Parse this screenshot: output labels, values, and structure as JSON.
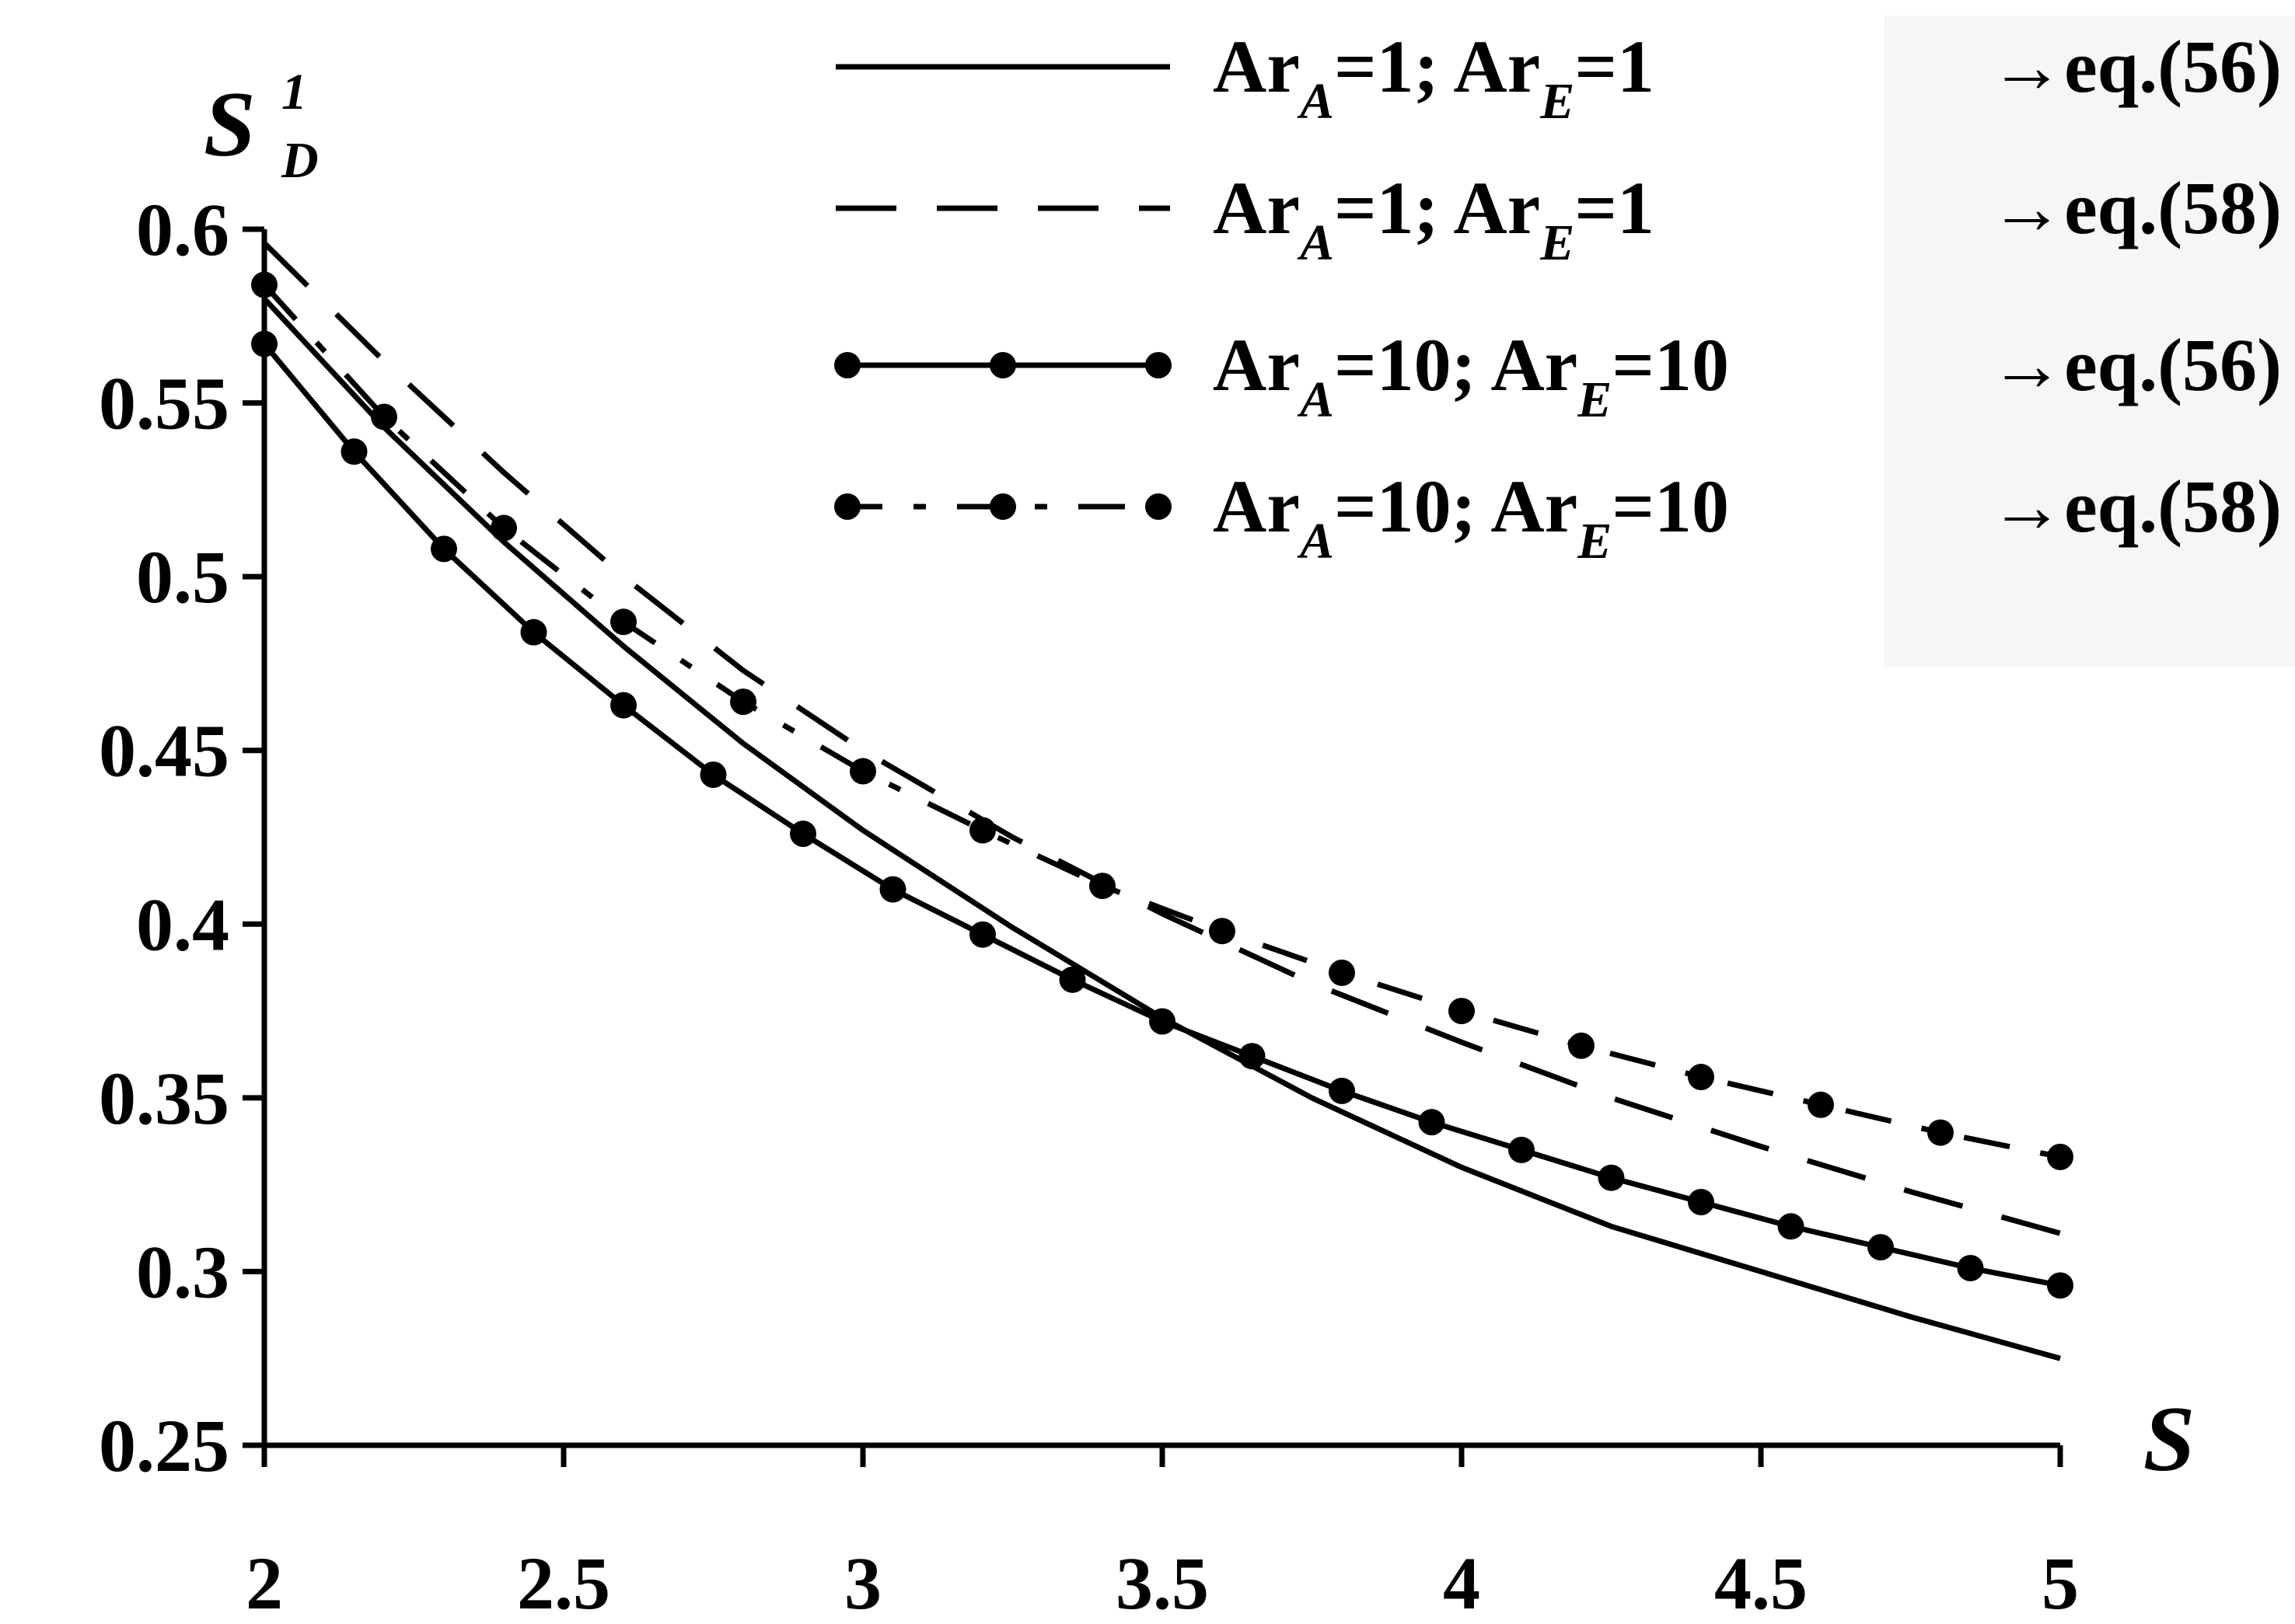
{
  "chart_data": {
    "type": "line",
    "xlabel": "S",
    "ylabel": {
      "main": "S",
      "sub": "D",
      "sup": "1"
    },
    "xlim": [
      2,
      5
    ],
    "ylim": [
      0.25,
      0.6
    ],
    "xticks": [
      "2",
      "2.5",
      "3",
      "3.5",
      "4",
      "4.5",
      "5"
    ],
    "yticks": [
      "0.6",
      "0.55",
      "0.5",
      "0.45",
      "0.4",
      "0.35",
      "0.3",
      "0.25"
    ],
    "grid": false,
    "legend_position": "top-right",
    "series": [
      {
        "label": {
          "a1": "Ar",
          "s1": "A",
          "m1": "=1; Ar",
          "s2": "E",
          "m2": "=1",
          "ref": "→eq.(56)"
        },
        "style": "solid",
        "markers": false,
        "x": [
          2,
          2.2,
          2.4,
          2.6,
          2.8,
          3,
          3.25,
          3.5,
          3.75,
          4,
          4.25,
          4.5,
          4.75,
          5
        ],
        "y": [
          0.58,
          0.543,
          0.51,
          0.48,
          0.452,
          0.427,
          0.399,
          0.373,
          0.35,
          0.33,
          0.313,
          0.3,
          0.287,
          0.275
        ]
      },
      {
        "label": {
          "a1": "Ar",
          "s1": "A",
          "m1": "=1; Ar",
          "s2": "E",
          "m2": "=1",
          "ref": "→eq.(58)"
        },
        "style": "dashed",
        "markers": false,
        "x": [
          2,
          2.2,
          2.4,
          2.6,
          2.8,
          3,
          3.25,
          3.5,
          3.75,
          4,
          4.25,
          4.5,
          4.75,
          5
        ],
        "y": [
          0.596,
          0.562,
          0.53,
          0.5,
          0.473,
          0.45,
          0.425,
          0.403,
          0.383,
          0.366,
          0.35,
          0.336,
          0.323,
          0.311
        ]
      },
      {
        "label": {
          "a1": "Ar",
          "s1": "A",
          "m1": "=10; Ar",
          "s2": "E",
          "m2": "=10",
          "ref": "→eq.(56)"
        },
        "style": "solid",
        "markers": true,
        "x": [
          2,
          2.15,
          2.3,
          2.45,
          2.6,
          2.75,
          2.9,
          3.05,
          3.2,
          3.35,
          3.5,
          3.65,
          3.8,
          3.95,
          4.1,
          4.25,
          4.4,
          4.55,
          4.7,
          4.85,
          5
        ],
        "y": [
          0.567,
          0.536,
          0.508,
          0.484,
          0.463,
          0.443,
          0.426,
          0.41,
          0.397,
          0.384,
          0.372,
          0.362,
          0.352,
          0.343,
          0.335,
          0.327,
          0.32,
          0.313,
          0.307,
          0.301,
          0.296
        ]
      },
      {
        "label": {
          "a1": "Ar",
          "s1": "A",
          "m1": "=10; Ar",
          "s2": "E",
          "m2": "=10",
          "ref": "→eq.(58)"
        },
        "style": "dashdot",
        "markers": true,
        "x": [
          2,
          2.2,
          2.4,
          2.6,
          2.8,
          3,
          3.2,
          3.4,
          3.6,
          3.8,
          4,
          4.2,
          4.4,
          4.6,
          4.8,
          5
        ],
        "y": [
          0.584,
          0.546,
          0.514,
          0.487,
          0.464,
          0.444,
          0.427,
          0.411,
          0.398,
          0.386,
          0.375,
          0.365,
          0.356,
          0.348,
          0.34,
          0.333
        ]
      }
    ]
  }
}
